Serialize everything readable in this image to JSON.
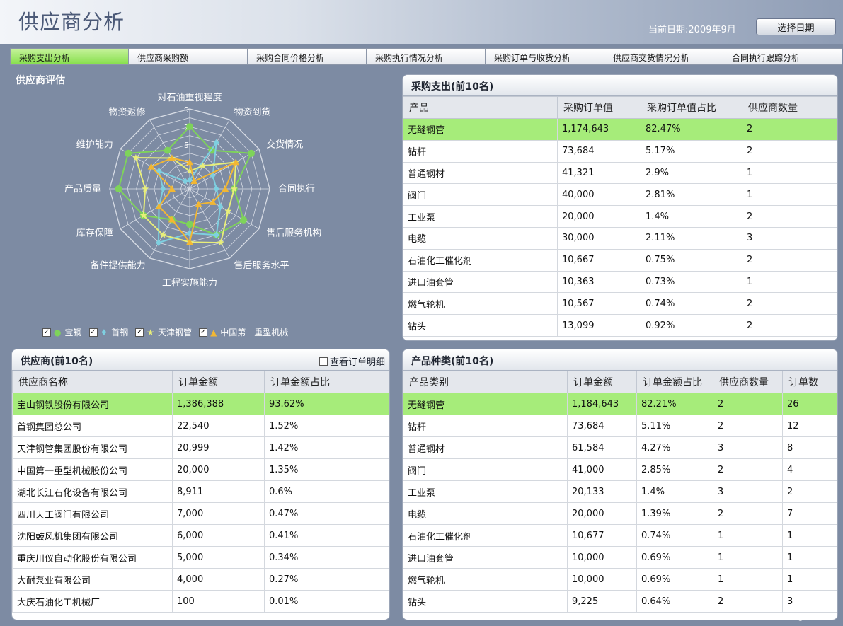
{
  "header": {
    "title": "供应商分析",
    "date_label": "当前日期:2009年9月",
    "date_button": "选择日期"
  },
  "tabs": [
    "采购支出分析",
    "供应商采购额",
    "采购合同价格分析",
    "采购执行情况分析",
    "采购订单与收货分析",
    "供应商交货情况分析",
    "合同执行跟踪分析"
  ],
  "radar": {
    "title": "供应商评估",
    "axes": [
      "对石油重视程度",
      "物资到货",
      "交货情况",
      "合同执行",
      "售后服务机构",
      "售后服务水平",
      "工程实施能力",
      "备件提供能力",
      "库存保障",
      "产品质量",
      "维护能力",
      "物资返修"
    ],
    "tick_labels": [
      "9",
      "7",
      "5",
      "3",
      "0"
    ],
    "max": 9,
    "series": [
      {
        "name": "宝钢",
        "color": "#7ed35a",
        "marker": "circle",
        "icon": "●",
        "values": [
          7,
          5,
          8,
          5,
          7,
          6,
          4,
          4,
          6,
          8,
          8,
          5
        ]
      },
      {
        "name": "首钢",
        "color": "#7ecfe0",
        "marker": "diamond",
        "icon": "♦",
        "values": [
          1,
          6,
          3,
          3,
          4,
          6,
          5,
          7,
          4,
          3,
          4,
          1
        ]
      },
      {
        "name": "天津钢管",
        "color": "#e8ee7a",
        "marker": "star",
        "icon": "★",
        "values": [
          2,
          3,
          6,
          5,
          5,
          7,
          6,
          6,
          6,
          5,
          7,
          4
        ]
      },
      {
        "name": "中国第一重型机械",
        "color": "#f2b733",
        "marker": "triangle",
        "icon": "▲",
        "values": [
          3,
          1,
          6,
          4,
          3,
          2,
          6,
          4,
          4,
          2,
          5,
          4
        ]
      }
    ]
  },
  "purchase": {
    "title": "采购支出(前10名)",
    "columns": [
      "产品",
      "采购订单值",
      "采购订单值占比",
      "供应商数量"
    ],
    "rows": [
      [
        "无缝钢管",
        "1,174,643",
        "82.47%",
        "2"
      ],
      [
        "钻杆",
        "73,684",
        "5.17%",
        "2"
      ],
      [
        "普通钢材",
        "41,321",
        "2.9%",
        "1"
      ],
      [
        "阀门",
        "40,000",
        "2.81%",
        "1"
      ],
      [
        "工业泵",
        "20,000",
        "1.4%",
        "2"
      ],
      [
        "电缆",
        "30,000",
        "2.11%",
        "3"
      ],
      [
        "石油化工催化剂",
        "10,667",
        "0.75%",
        "2"
      ],
      [
        "进口油套管",
        "10,363",
        "0.73%",
        "1"
      ],
      [
        "燃气轮机",
        "10,567",
        "0.74%",
        "2"
      ],
      [
        "钻头",
        "13,099",
        "0.92%",
        "2"
      ]
    ]
  },
  "suppliers": {
    "title": "供应商(前10名)",
    "detail_label": "查看订单明细",
    "columns": [
      "供应商名称",
      "订单金额",
      "订单金额占比"
    ],
    "rows": [
      [
        "宝山钢铁股份有限公司",
        "1,386,388",
        "93.62%"
      ],
      [
        "首钢集团总公司",
        "22,540",
        "1.52%"
      ],
      [
        "天津钢管集团股份有限公司",
        "20,999",
        "1.42%"
      ],
      [
        "中国第一重型机械股份公司",
        "20,000",
        "1.35%"
      ],
      [
        "湖北长江石化设备有限公司",
        "8,911",
        "0.6%"
      ],
      [
        "四川天工阀门有限公司",
        "7,000",
        "0.47%"
      ],
      [
        "沈阳鼓风机集团有限公司",
        "6,000",
        "0.41%"
      ],
      [
        "重庆川仪自动化股份有限公司",
        "5,000",
        "0.34%"
      ],
      [
        "大耐泵业有限公司",
        "4,000",
        "0.27%"
      ],
      [
        "大庆石油化工机械厂",
        "100",
        "0.01%"
      ]
    ]
  },
  "products": {
    "title": "产品种类(前10名)",
    "columns": [
      "产品类别",
      "订单金额",
      "订单金额占比",
      "供应商数量",
      "订单数"
    ],
    "rows": [
      [
        "无缝钢管",
        "1,184,643",
        "82.21%",
        "2",
        "26"
      ],
      [
        "钻杆",
        "73,684",
        "5.11%",
        "2",
        "12"
      ],
      [
        "普通钢材",
        "61,584",
        "4.27%",
        "3",
        "8"
      ],
      [
        "阀门",
        "41,000",
        "2.85%",
        "2",
        "4"
      ],
      [
        "工业泵",
        "20,133",
        "1.4%",
        "3",
        "2"
      ],
      [
        "电缆",
        "20,000",
        "1.39%",
        "2",
        "7"
      ],
      [
        "石油化工催化剂",
        "10,677",
        "0.74%",
        "1",
        "1"
      ],
      [
        "进口油套管",
        "10,000",
        "0.69%",
        "1",
        "1"
      ],
      [
        "燃气轮机",
        "10,000",
        "0.69%",
        "1",
        "1"
      ],
      [
        "钻头",
        "9,225",
        "0.64%",
        "2",
        "3"
      ]
    ]
  },
  "watermark": "CSDN @何泰~"
}
